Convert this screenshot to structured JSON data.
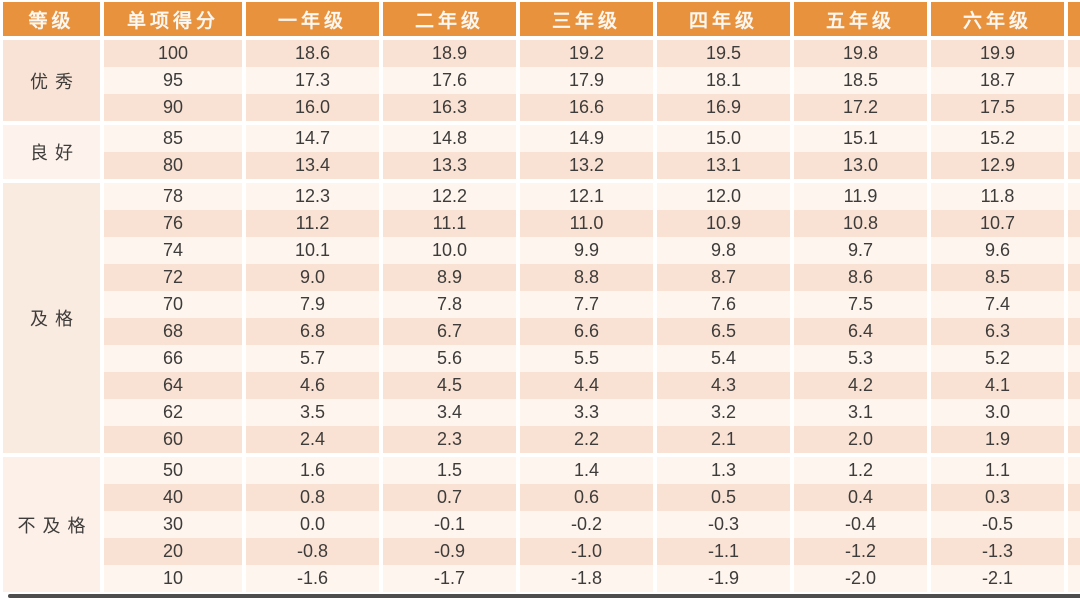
{
  "colors": {
    "header_bg": "#E8923E",
    "header_text": "#FCF7F0",
    "row_peach": "#F9E2D4",
    "row_cream": "#FDF5EE",
    "body_text": "#3E3C3A",
    "bottom_edge": "#4E4E4E",
    "group_cell_bgs": [
      "#F8E3D6",
      "#FDF3EC",
      "#FAEBE1",
      "#FCF0E8"
    ]
  },
  "chart_data": {
    "type": "table",
    "columns": [
      "等级",
      "单项得分",
      "一年级",
      "二年级",
      "三年级",
      "四年级",
      "五年级",
      "六年级"
    ],
    "groups": [
      {
        "label": "优秀",
        "rows": [
          {
            "score": "100",
            "values": [
              "18.6",
              "18.9",
              "19.2",
              "19.5",
              "19.8",
              "19.9"
            ]
          },
          {
            "score": "95",
            "values": [
              "17.3",
              "17.6",
              "17.9",
              "18.1",
              "18.5",
              "18.7"
            ]
          },
          {
            "score": "90",
            "values": [
              "16.0",
              "16.3",
              "16.6",
              "16.9",
              "17.2",
              "17.5"
            ]
          }
        ]
      },
      {
        "label": "良好",
        "rows": [
          {
            "score": "85",
            "values": [
              "14.7",
              "14.8",
              "14.9",
              "15.0",
              "15.1",
              "15.2"
            ]
          },
          {
            "score": "80",
            "values": [
              "13.4",
              "13.3",
              "13.2",
              "13.1",
              "13.0",
              "12.9"
            ]
          }
        ]
      },
      {
        "label": "及格",
        "rows": [
          {
            "score": "78",
            "values": [
              "12.3",
              "12.2",
              "12.1",
              "12.0",
              "11.9",
              "11.8"
            ]
          },
          {
            "score": "76",
            "values": [
              "11.2",
              "11.1",
              "11.0",
              "10.9",
              "10.8",
              "10.7"
            ]
          },
          {
            "score": "74",
            "values": [
              "10.1",
              "10.0",
              "9.9",
              "9.8",
              "9.7",
              "9.6"
            ]
          },
          {
            "score": "72",
            "values": [
              "9.0",
              "8.9",
              "8.8",
              "8.7",
              "8.6",
              "8.5"
            ]
          },
          {
            "score": "70",
            "values": [
              "7.9",
              "7.8",
              "7.7",
              "7.6",
              "7.5",
              "7.4"
            ]
          },
          {
            "score": "68",
            "values": [
              "6.8",
              "6.7",
              "6.6",
              "6.5",
              "6.4",
              "6.3"
            ]
          },
          {
            "score": "66",
            "values": [
              "5.7",
              "5.6",
              "5.5",
              "5.4",
              "5.3",
              "5.2"
            ]
          },
          {
            "score": "64",
            "values": [
              "4.6",
              "4.5",
              "4.4",
              "4.3",
              "4.2",
              "4.1"
            ]
          },
          {
            "score": "62",
            "values": [
              "3.5",
              "3.4",
              "3.3",
              "3.2",
              "3.1",
              "3.0"
            ]
          },
          {
            "score": "60",
            "values": [
              "2.4",
              "2.3",
              "2.2",
              "2.1",
              "2.0",
              "1.9"
            ]
          }
        ]
      },
      {
        "label": "不及格",
        "rows": [
          {
            "score": "50",
            "values": [
              "1.6",
              "1.5",
              "1.4",
              "1.3",
              "1.2",
              "1.1"
            ]
          },
          {
            "score": "40",
            "values": [
              "0.8",
              "0.7",
              "0.6",
              "0.5",
              "0.4",
              "0.3"
            ]
          },
          {
            "score": "30",
            "values": [
              "0.0",
              "-0.1",
              "-0.2",
              "-0.3",
              "-0.4",
              "-0.5"
            ]
          },
          {
            "score": "20",
            "values": [
              "-0.8",
              "-0.9",
              "-1.0",
              "-1.1",
              "-1.2",
              "-1.3"
            ]
          },
          {
            "score": "10",
            "values": [
              "-1.6",
              "-1.7",
              "-1.8",
              "-1.9",
              "-2.0",
              "-2.1"
            ]
          }
        ]
      }
    ]
  }
}
